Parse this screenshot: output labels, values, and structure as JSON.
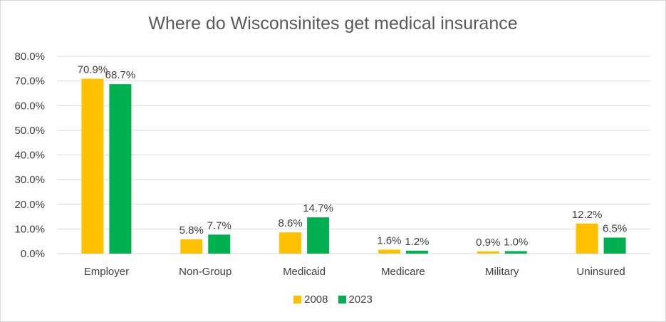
{
  "chart_data": {
    "type": "bar",
    "title": "Where do Wisconsinites get medical insurance",
    "categories": [
      "Employer",
      "Non-Group",
      "Medicaid",
      "Medicare",
      "Military",
      "Uninsured"
    ],
    "series": [
      {
        "name": "2008",
        "color": "#FFC000",
        "values": [
          70.9,
          5.8,
          8.6,
          1.6,
          0.9,
          12.2
        ],
        "labels": [
          "70.9%",
          "5.8%",
          "8.6%",
          "1.6%",
          "0.9%",
          "12.2%"
        ]
      },
      {
        "name": "2023",
        "color": "#00B050",
        "values": [
          68.7,
          7.7,
          14.7,
          1.2,
          1.0,
          6.5
        ],
        "labels": [
          "68.7%",
          "7.7%",
          "14.7%",
          "1.2%",
          "1.0%",
          "6.5%"
        ]
      }
    ],
    "ylim": [
      0,
      80
    ],
    "yticks": [
      0,
      10,
      20,
      30,
      40,
      50,
      60,
      70,
      80
    ],
    "ytick_labels": [
      "0.0%",
      "10.0%",
      "20.0%",
      "30.0%",
      "40.0%",
      "50.0%",
      "60.0%",
      "70.0%",
      "80.0%"
    ],
    "grid": true,
    "legend_position": "bottom"
  }
}
